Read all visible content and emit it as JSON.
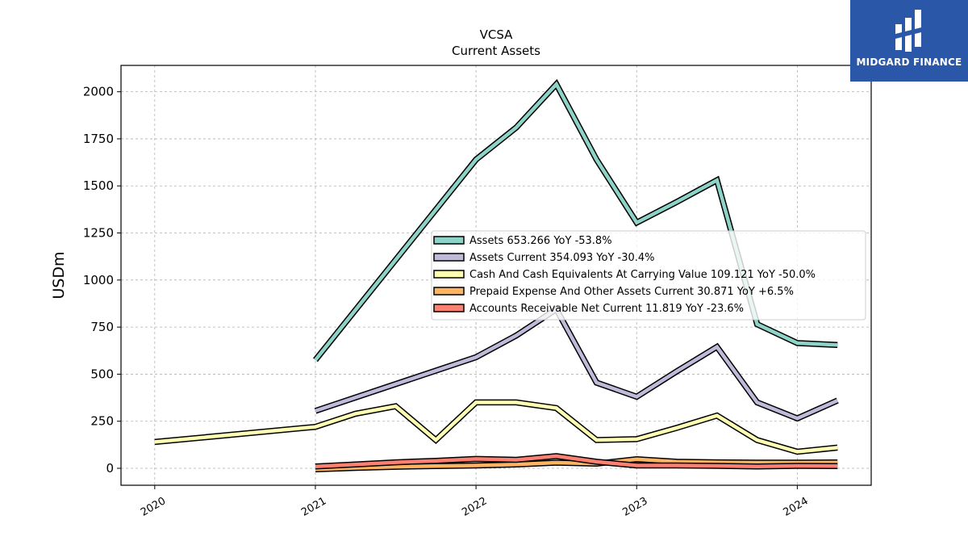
{
  "chart_data": {
    "type": "line",
    "title": "VCSA",
    "subtitle": "Current  Assets",
    "xlabel": "",
    "ylabel": "USDm",
    "ylim": [
      -90,
      2140
    ],
    "xlim": [
      2019.79,
      2024.46
    ],
    "yticks": [
      0,
      250,
      500,
      750,
      1000,
      1250,
      1500,
      1750,
      2000
    ],
    "xticks": [
      {
        "value": 2020,
        "label": "2020"
      },
      {
        "value": 2021,
        "label": "2021"
      },
      {
        "value": 2022,
        "label": "2022"
      },
      {
        "value": 2023,
        "label": "2023"
      },
      {
        "value": 2024,
        "label": "2024"
      }
    ],
    "grid": true,
    "legend_position": "center-right",
    "series": [
      {
        "name": "Assets  653.266 YoY -53.8%",
        "color": "#8dd3c7",
        "x": [
          2021.0,
          2022.0,
          2022.25,
          2022.5,
          2022.75,
          2023.0,
          2023.25,
          2023.5,
          2023.75,
          2024.0,
          2024.25
        ],
        "y": [
          575,
          1640,
          1810,
          2040,
          1640,
          1305,
          1415,
          1530,
          765,
          665,
          655
        ]
      },
      {
        "name": "Assets Current  354.093 YoY -30.4%",
        "color": "#bebada",
        "x": [
          2021.0,
          2022.0,
          2022.25,
          2022.5,
          2022.75,
          2023.0,
          2023.25,
          2023.5,
          2023.75,
          2024.0,
          2024.25
        ],
        "y": [
          305,
          590,
          705,
          845,
          455,
          380,
          515,
          645,
          350,
          265,
          360
        ]
      },
      {
        "name": "Cash And Cash Equivalents At Carrying Value  109.121 YoY -50.0%",
        "color": "#ffffb3",
        "x": [
          2020.0,
          2021.0,
          2021.25,
          2021.5,
          2021.75,
          2022.0,
          2022.25,
          2022.5,
          2022.75,
          2023.0,
          2023.25,
          2023.5,
          2023.75,
          2024.0,
          2024.25
        ],
        "y": [
          140,
          220,
          290,
          330,
          150,
          350,
          350,
          320,
          150,
          155,
          215,
          280,
          150,
          88,
          110
        ]
      },
      {
        "name": "Prepaid Expense And Other Assets Current  30.871 YoY +6.5%",
        "color": "#fdb462",
        "x": [
          2021.0,
          2021.25,
          2021.5,
          2021.75,
          2022.0,
          2022.25,
          2022.5,
          2022.75,
          2023.0,
          2023.25,
          2023.5,
          2023.75,
          2024.0,
          2024.25
        ],
        "y": [
          -5,
          2,
          8,
          12,
          15,
          20,
          30,
          25,
          48,
          35,
          32,
          30,
          30,
          31
        ]
      },
      {
        "name": "Accounts Receivable Net Current  11.819 YoY -23.6%",
        "color": "#fb8072",
        "x": [
          2021.0,
          2021.25,
          2021.5,
          2021.75,
          2022.0,
          2022.25,
          2022.5,
          2022.75,
          2023.0,
          2023.25,
          2023.5,
          2023.75,
          2024.0,
          2024.25
        ],
        "y": [
          10,
          20,
          32,
          40,
          50,
          45,
          65,
          35,
          15,
          15,
          13,
          10,
          13,
          12
        ]
      }
    ]
  },
  "logo": {
    "text": "MIDGARD FINANCE",
    "background": "#2b57a8"
  }
}
